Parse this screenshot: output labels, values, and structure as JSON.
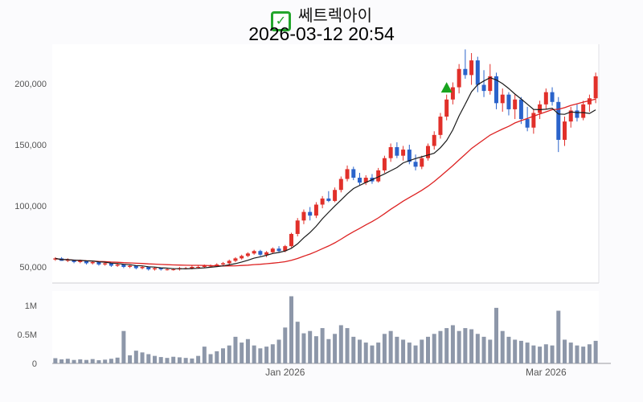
{
  "header": {
    "title": "쎄트렉아이",
    "datetime": "2026-03-12 20:54",
    "check_glyph": "✓"
  },
  "chart_data": {
    "type": "candlestick",
    "title": "쎄트렉아이",
    "subtitle": "2026-03-12 20:54",
    "legend_position": "none",
    "grid": false,
    "price_axis": {
      "ticks": [
        50000,
        100000,
        150000,
        200000
      ],
      "labels": [
        "50,000",
        "100,000",
        "150,000",
        "200,000"
      ],
      "range": [
        36000,
        232000
      ]
    },
    "volume_axis": {
      "ticks": [
        0,
        500000,
        1000000
      ],
      "labels": [
        "0",
        "0.5M",
        "1M"
      ],
      "range": [
        0,
        1250000
      ]
    },
    "x_ticks": [
      {
        "index": 37,
        "label": "Jan 2026"
      },
      {
        "index": 79,
        "label": "Mar 2026"
      }
    ],
    "colors": {
      "up": "#e1302a",
      "down": "#2a63cb",
      "ma_fast": "#1a1a1a",
      "ma_slow": "#dd2222",
      "volume": "#8d97a9",
      "marker": "#18a41e",
      "axis_text": "#555555",
      "pane_bg": "#ffffff",
      "page_bg": "#fbfbfd"
    },
    "ma_fast_window": 7,
    "ma_slow_window": 25,
    "marker": {
      "index": 63,
      "price": 196000,
      "shape": "triangle-up"
    },
    "candles": [
      [
        56000,
        58000,
        55000,
        57000
      ],
      [
        57000,
        58000,
        55000,
        55000
      ],
      [
        55000,
        57000,
        54000,
        56000
      ],
      [
        56000,
        56000,
        53000,
        54000
      ],
      [
        54000,
        56000,
        53000,
        55000
      ],
      [
        55000,
        55000,
        52000,
        53000
      ],
      [
        53000,
        55000,
        52000,
        54000
      ],
      [
        54000,
        54000,
        51000,
        52000
      ],
      [
        52000,
        54000,
        51000,
        53000
      ],
      [
        53000,
        53000,
        50000,
        51000
      ],
      [
        51000,
        53000,
        50000,
        52000
      ],
      [
        52000,
        52000,
        49000,
        50000
      ],
      [
        50000,
        52000,
        49000,
        51000
      ],
      [
        51000,
        51000,
        48000,
        49000
      ],
      [
        49000,
        51000,
        48000,
        50000
      ],
      [
        50000,
        50000,
        47000,
        48000
      ],
      [
        48000,
        50000,
        47000,
        49000
      ],
      [
        49000,
        49000,
        47000,
        48000
      ],
      [
        48000,
        49000,
        47000,
        48000
      ],
      [
        48000,
        49000,
        47000,
        48000
      ],
      [
        48000,
        50000,
        47000,
        49000
      ],
      [
        49000,
        50000,
        48000,
        49000
      ],
      [
        49000,
        51000,
        48000,
        50000
      ],
      [
        50000,
        51000,
        49000,
        50000
      ],
      [
        50000,
        52000,
        49000,
        51000
      ],
      [
        51000,
        52000,
        50000,
        51000
      ],
      [
        51000,
        53000,
        50000,
        52000
      ],
      [
        52000,
        54000,
        51000,
        53000
      ],
      [
        53000,
        56000,
        52000,
        55000
      ],
      [
        55000,
        58000,
        54000,
        57000
      ],
      [
        57000,
        60000,
        56000,
        59000
      ],
      [
        59000,
        62000,
        58000,
        61000
      ],
      [
        61000,
        64000,
        60000,
        63000
      ],
      [
        63000,
        64000,
        59000,
        60000
      ],
      [
        60000,
        63000,
        58000,
        62000
      ],
      [
        62000,
        66000,
        61000,
        65000
      ],
      [
        65000,
        67000,
        62000,
        63000
      ],
      [
        63000,
        68000,
        62000,
        67000
      ],
      [
        67000,
        78000,
        66000,
        77000
      ],
      [
        77000,
        90000,
        75000,
        88000
      ],
      [
        88000,
        97000,
        85000,
        95000
      ],
      [
        95000,
        99000,
        88000,
        92000
      ],
      [
        92000,
        103000,
        90000,
        101000
      ],
      [
        101000,
        108000,
        98000,
        106000
      ],
      [
        106000,
        112000,
        103000,
        104000
      ],
      [
        104000,
        115000,
        103000,
        113000
      ],
      [
        113000,
        124000,
        111000,
        122000
      ],
      [
        122000,
        133000,
        120000,
        130000
      ],
      [
        130000,
        132000,
        121000,
        123000
      ],
      [
        123000,
        127000,
        117000,
        119000
      ],
      [
        119000,
        125000,
        117000,
        123000
      ],
      [
        123000,
        126000,
        118000,
        120000
      ],
      [
        120000,
        131000,
        119000,
        129000
      ],
      [
        129000,
        141000,
        127000,
        139000
      ],
      [
        139000,
        151000,
        136000,
        148000
      ],
      [
        148000,
        152000,
        139000,
        141000
      ],
      [
        141000,
        149000,
        137000,
        146000
      ],
      [
        146000,
        150000,
        134000,
        136000
      ],
      [
        136000,
        142000,
        129000,
        132000
      ],
      [
        132000,
        141000,
        130000,
        139000
      ],
      [
        139000,
        151000,
        137000,
        149000
      ],
      [
        149000,
        161000,
        146000,
        158000
      ],
      [
        158000,
        176000,
        155000,
        173000
      ],
      [
        173000,
        191000,
        170000,
        187000
      ],
      [
        187000,
        201000,
        183000,
        197000
      ],
      [
        197000,
        216000,
        192000,
        212000
      ],
      [
        212000,
        228000,
        204000,
        207000
      ],
      [
        207000,
        225000,
        199000,
        219000
      ],
      [
        219000,
        222000,
        193000,
        199000
      ],
      [
        199000,
        211000,
        189000,
        194000
      ],
      [
        194000,
        216000,
        191000,
        206000
      ],
      [
        206000,
        209000,
        179000,
        184000
      ],
      [
        184000,
        196000,
        177000,
        191000
      ],
      [
        191000,
        193000,
        174000,
        179000
      ],
      [
        179000,
        191000,
        171000,
        187000
      ],
      [
        187000,
        189000,
        167000,
        171000
      ],
      [
        171000,
        181000,
        161000,
        164000
      ],
      [
        164000,
        179000,
        159000,
        176000
      ],
      [
        176000,
        186000,
        171000,
        183000
      ],
      [
        183000,
        196000,
        179000,
        193000
      ],
      [
        193000,
        197000,
        182000,
        185000
      ],
      [
        185000,
        189000,
        144000,
        154000
      ],
      [
        154000,
        173000,
        149000,
        169000
      ],
      [
        169000,
        181000,
        164000,
        178000
      ],
      [
        178000,
        183000,
        169000,
        172000
      ],
      [
        172000,
        186000,
        170000,
        183000
      ],
      [
        183000,
        191000,
        177000,
        188000
      ],
      [
        188000,
        209000,
        184000,
        206000
      ]
    ],
    "volumes": [
      90000,
      70000,
      80000,
      60000,
      70000,
      60000,
      75000,
      55000,
      65000,
      80000,
      100000,
      560000,
      140000,
      220000,
      190000,
      160000,
      130000,
      110000,
      95000,
      115000,
      105000,
      95000,
      85000,
      130000,
      290000,
      160000,
      210000,
      260000,
      310000,
      460000,
      360000,
      420000,
      310000,
      260000,
      290000,
      330000,
      410000,
      620000,
      1160000,
      720000,
      520000,
      560000,
      470000,
      610000,
      420000,
      510000,
      660000,
      610000,
      460000,
      410000,
      360000,
      310000,
      360000,
      510000,
      560000,
      460000,
      410000,
      360000,
      310000,
      410000,
      460000,
      510000,
      560000,
      610000,
      660000,
      560000,
      610000,
      590000,
      510000,
      460000,
      410000,
      960000,
      560000,
      460000,
      410000,
      390000,
      360000,
      310000,
      290000,
      330000,
      310000,
      910000,
      410000,
      360000,
      310000,
      290000,
      330000,
      390000
    ]
  }
}
